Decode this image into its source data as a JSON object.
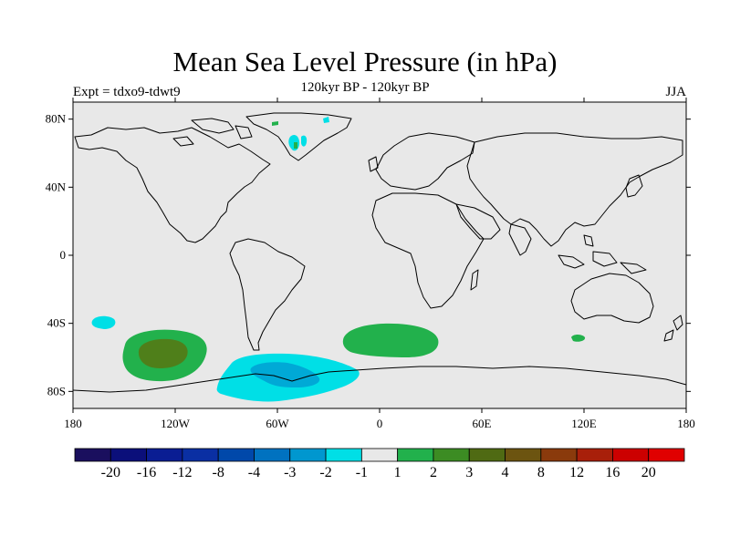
{
  "header": {
    "title": "Mean Sea Level Pressure (in hPa)",
    "subtitle": "120kyr BP - 120kyr BP",
    "left_label": "Expt = tdxo9-tdwt9",
    "right_label": "JJA"
  },
  "map": {
    "projection": "cylindrical-equidistant",
    "lon_range": [
      -180,
      180
    ],
    "lat_range": [
      -90,
      90
    ],
    "background_color": "#e8e8e8",
    "lat_ticks": [
      {
        "lat": 80,
        "label": "80N"
      },
      {
        "lat": 40,
        "label": "40N"
      },
      {
        "lat": 0,
        "label": "0"
      },
      {
        "lat": -40,
        "label": "40S"
      },
      {
        "lat": -80,
        "label": "80S"
      }
    ],
    "lon_ticks": [
      {
        "lon": -180,
        "label": "180"
      },
      {
        "lon": -120,
        "label": "120W"
      },
      {
        "lon": -60,
        "label": "60W"
      },
      {
        "lon": 0,
        "label": "0"
      },
      {
        "lon": 60,
        "label": "60E"
      },
      {
        "lon": 120,
        "label": "120E"
      },
      {
        "lon": 180,
        "label": "180"
      }
    ],
    "anomaly_regions": [
      {
        "id": "south-pacific-positive",
        "level": "2 to 3",
        "color": "#22b14c",
        "center": [
          -128,
          -58
        ]
      },
      {
        "id": "south-pacific-core",
        "level": "3 to 4",
        "color": "#4f7f1a",
        "center": [
          -125,
          -57
        ]
      },
      {
        "id": "south-atlantic-positive",
        "level": "2 to 3",
        "color": "#22b14c",
        "center": [
          15,
          -49
        ]
      },
      {
        "id": "drake-passage-negative",
        "level": "-1 to -2",
        "color": "#00dfe6",
        "center": [
          -55,
          -72
        ]
      },
      {
        "id": "drake-passage-core",
        "level": "-2 to -3",
        "color": "#00a9d6",
        "center": [
          -50,
          -69
        ]
      },
      {
        "id": "pacific-small-negative",
        "level": "-1 to -2",
        "color": "#00dfe6",
        "center": [
          -163,
          -39
        ]
      },
      {
        "id": "greenland-negative",
        "level": "-1 to -2",
        "color": "#00dfe6",
        "center": [
          -48,
          67
        ]
      },
      {
        "id": "indian-small-positive",
        "level": "2 to 3",
        "color": "#22b14c",
        "center": [
          117,
          -47
        ]
      }
    ]
  },
  "colorbar": {
    "labels": [
      "-20",
      "-16",
      "-12",
      "-8",
      "-4",
      "-3",
      "-2",
      "-1",
      "1",
      "2",
      "3",
      "4",
      "8",
      "12",
      "16",
      "20"
    ],
    "colors": [
      "#1a0f5e",
      "#0b0f7a",
      "#0a1d93",
      "#0a2fa3",
      "#0048aa",
      "#0072c0",
      "#0097cf",
      "#00dfe6",
      "#e8e8e8",
      "#22b14c",
      "#3c8c23",
      "#4f6a13",
      "#6c5410",
      "#8a3a0c",
      "#a81f0a",
      "#cc0000",
      "#e00000"
    ]
  }
}
